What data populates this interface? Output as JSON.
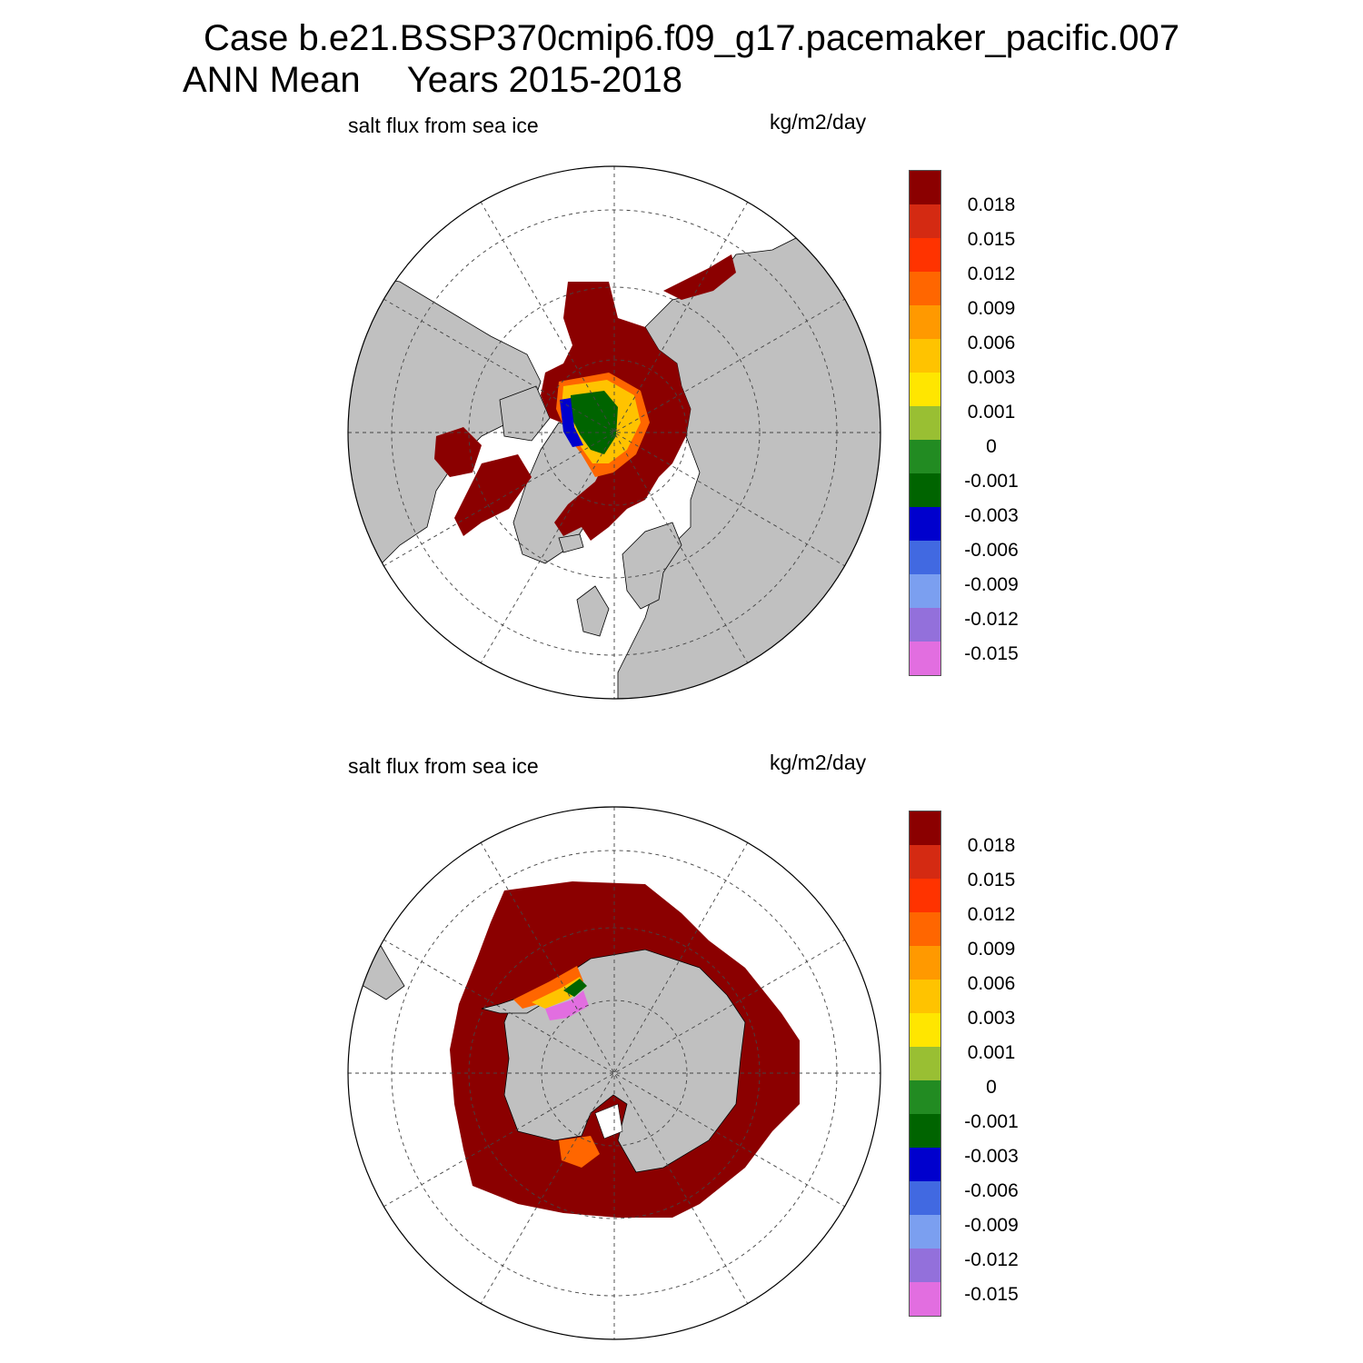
{
  "header": {
    "case_line": "Case b.e21.BSSP370cmip6.f09_g17.pacemaker_pacific.007",
    "mean_label": "ANN Mean",
    "years_label": "Years 2015-2018"
  },
  "panels": [
    {
      "id": "north",
      "variable": "salt flux from sea ice",
      "units": "kg/m2/day",
      "hemisphere": "Northern Hemisphere polar stereographic"
    },
    {
      "id": "south",
      "variable": "salt flux from sea ice",
      "units": "kg/m2/day",
      "hemisphere": "Southern Hemisphere polar stereographic"
    }
  ],
  "colorbar": {
    "labels": [
      "0.018",
      "0.015",
      "0.012",
      "0.009",
      "0.006",
      "0.003",
      "0.001",
      "0",
      "-0.001",
      "-0.003",
      "-0.006",
      "-0.009",
      "-0.012",
      "-0.015"
    ],
    "colors": [
      "#8b0000",
      "#d42a12",
      "#ff3300",
      "#ff6600",
      "#ff9900",
      "#ffc300",
      "#ffe600",
      "#99bf33",
      "#228b22",
      "#006400",
      "#0000cd",
      "#4169e1",
      "#7b9ff0",
      "#9370db",
      "#e26ee0"
    ]
  },
  "colors": {
    "land": "#c0c0c0",
    "ocean": "#ffffff",
    "high_flux": "#8b0000"
  }
}
